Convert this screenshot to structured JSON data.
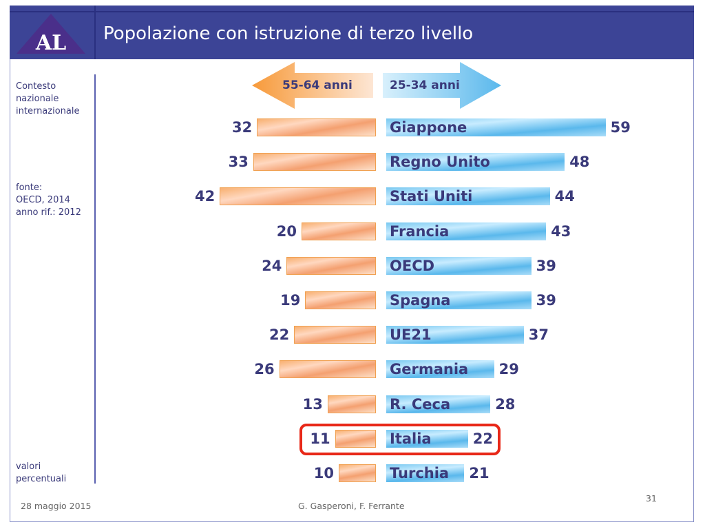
{
  "header": {
    "title": "Popolazione con istruzione di terzo livello",
    "logo_text": "AL"
  },
  "sidebar": {
    "context": [
      "Contesto",
      "nazionale",
      "internazionale"
    ],
    "source": [
      "fonte:",
      "OECD, 2014",
      "anno rif.: 2012"
    ],
    "units": [
      "valori",
      "percentuali"
    ]
  },
  "footer": {
    "date": "28 maggio 2015",
    "authors": "G. Gasperoni, F. Ferrante",
    "page": "31"
  },
  "colors": {
    "header": "#3c4496",
    "left_series": "#f4a070",
    "right_series": "#5ab8ec",
    "highlight": "#e82818",
    "text": "#3a3a7a"
  },
  "chart_data": {
    "type": "bar",
    "orientation": "horizontal-butterfly",
    "title": "Popolazione con istruzione di terzo livello",
    "categories": [
      "Giappone",
      "Regno Unito",
      "Stati Uniti",
      "Francia",
      "OECD",
      "Spagna",
      "UE21",
      "Germania",
      "R. Ceca",
      "Italia",
      "Turchia"
    ],
    "series": [
      {
        "name": "55-64 anni",
        "side": "left",
        "values": [
          32,
          33,
          42,
          20,
          24,
          19,
          22,
          26,
          13,
          11,
          10
        ]
      },
      {
        "name": "25-34 anni",
        "side": "right",
        "values": [
          59,
          48,
          44,
          43,
          39,
          39,
          37,
          29,
          28,
          22,
          21
        ]
      }
    ],
    "highlighted_category": "Italia",
    "unit": "valori percentuali"
  }
}
